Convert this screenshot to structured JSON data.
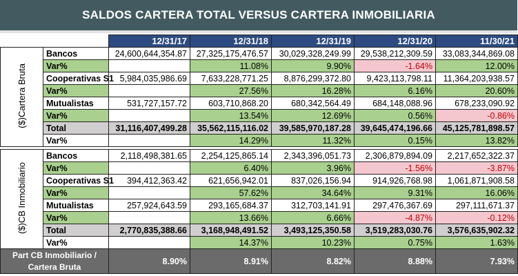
{
  "title": "SALDOS CARTERA TOTAL VERSUS CARTERA INMOBILIARIA",
  "dates": [
    "12/31/17",
    "12/31/18",
    "12/31/19",
    "12/31/20",
    "11/30/21"
  ],
  "colors": {
    "header": "#2d4b80",
    "positive": "#a9d08e",
    "negative_bg": "#f4c7ce",
    "negative_text": "#c00000",
    "total": "#d0cece",
    "footer": "#6b6b6b"
  },
  "sections": [
    {
      "label": "($)Cartera Bruta",
      "rows": [
        {
          "label": "Bancos",
          "values": [
            "24,600,644,354.87",
            "27,325,175,476.57",
            "30,029,328,249.99",
            "29,538,212,309.59",
            "33,083,344,869.08"
          ]
        },
        {
          "label": "Var%",
          "values": [
            "",
            "11.08%",
            "9.90%",
            "-1.64%",
            "12.00%"
          ]
        },
        {
          "label": "Cooperativas S1",
          "values": [
            "5,984,035,986.69",
            "7,633,228,771.25",
            "8,876,299,372.80",
            "9,423,113,798.11",
            "11,364,203,938.57"
          ]
        },
        {
          "label": "Var%",
          "values": [
            "",
            "27.56%",
            "16.28%",
            "6.16%",
            "20.60%"
          ]
        },
        {
          "label": "Mutualistas",
          "values": [
            "531,727,157.72",
            "603,710,868.20",
            "680,342,564.49",
            "684,148,088.96",
            "678,233,090.92"
          ]
        },
        {
          "label": "Var%",
          "values": [
            "",
            "13.54%",
            "12.69%",
            "0.56%",
            "-0.86%"
          ]
        },
        {
          "label": "Total",
          "values": [
            "31,116,407,499.28",
            "35,562,115,116.02",
            "39,585,970,187.28",
            "39,645,474,196.66",
            "45,125,781,898.57"
          ]
        },
        {
          "label": "Var%",
          "values": [
            "",
            "14.29%",
            "11.32%",
            "0.15%",
            "13.82%"
          ]
        }
      ]
    },
    {
      "label": "($)CB Inmobiliario",
      "rows": [
        {
          "label": "Bancos",
          "values": [
            "2,118,498,381.65",
            "2,254,125,865.14",
            "2,343,396,051.73",
            "2,306,879,894.09",
            "2,217,652,322.37"
          ]
        },
        {
          "label": "Var%",
          "values": [
            "",
            "6.40%",
            "3.96%",
            "-1.56%",
            "-3.87%"
          ]
        },
        {
          "label": "Cooperativas S1",
          "values": [
            "394,412,363.42",
            "621,656,942.01",
            "837,026,156.94",
            "914,926,768.98",
            "1,061,871,908.58"
          ]
        },
        {
          "label": "Var%",
          "values": [
            "",
            "57.62%",
            "34.64%",
            "9.31%",
            "16.06%"
          ]
        },
        {
          "label": "Mutualistas",
          "values": [
            "257,924,643.59",
            "293,165,684.37",
            "312,703,141.91",
            "297,476,367.69",
            "297,111,671.37"
          ]
        },
        {
          "label": "Var%",
          "values": [
            "",
            "13.66%",
            "6.66%",
            "-4.87%",
            "-0.12%"
          ]
        },
        {
          "label": "Total",
          "values": [
            "2,770,835,388.66",
            "3,168,948,491.52",
            "3,493,125,350.58",
            "3,519,283,030.76",
            "3,576,635,902.32"
          ]
        },
        {
          "label": "Var%",
          "values": [
            "",
            "14.37%",
            "10.23%",
            "0.75%",
            "1.63%"
          ]
        }
      ]
    }
  ],
  "footer": {
    "label": "Part CB Inmobiliario / Cartera Bruta",
    "values": [
      "8.90%",
      "8.91%",
      "8.82%",
      "8.88%",
      "7.93%"
    ]
  }
}
